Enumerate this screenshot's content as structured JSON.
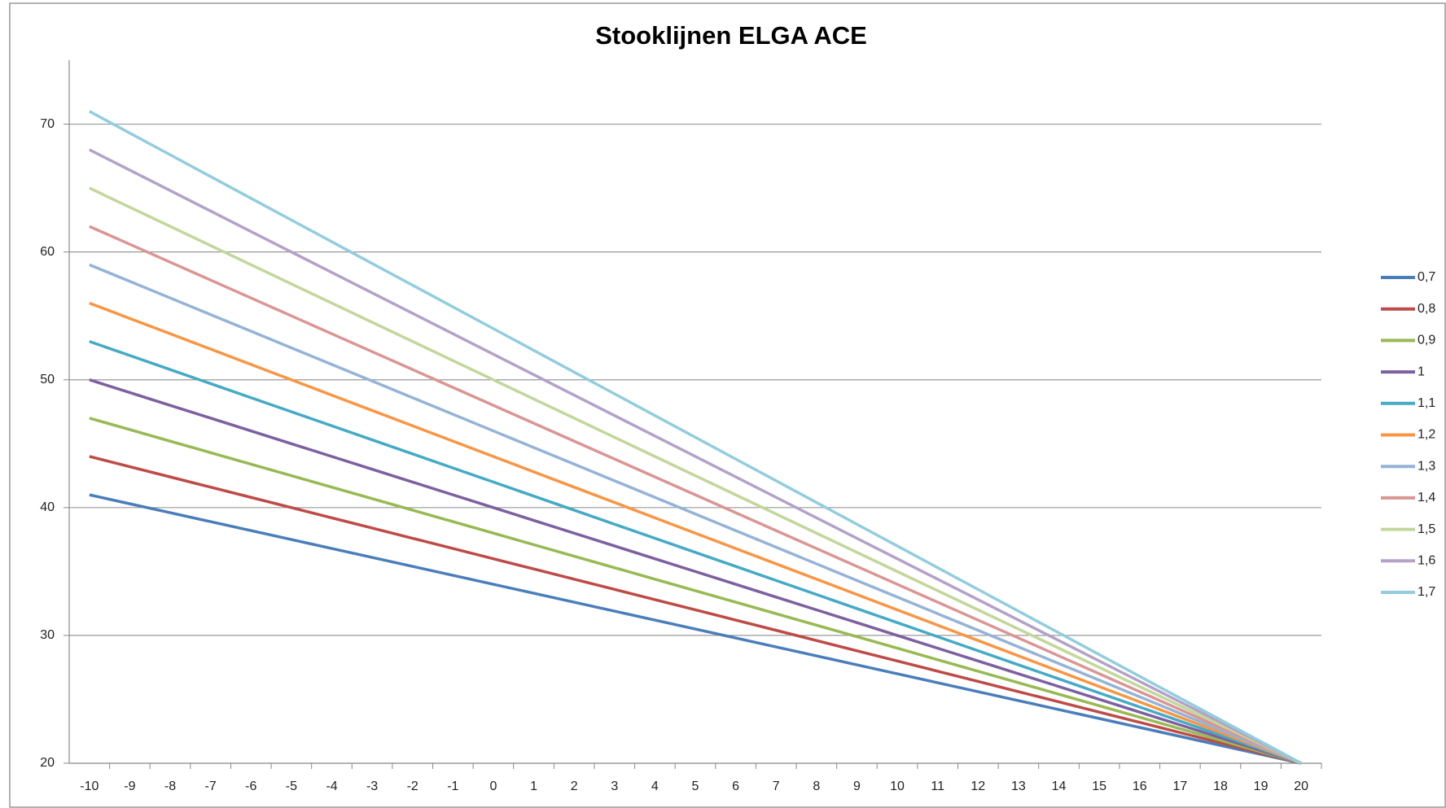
{
  "chart_data": {
    "type": "line",
    "title": "Stooklijnen ELGA ACE",
    "x": [
      -10,
      -9,
      -8,
      -7,
      -6,
      -5,
      -4,
      -3,
      -2,
      -1,
      0,
      1,
      2,
      3,
      4,
      5,
      6,
      7,
      8,
      9,
      10,
      11,
      12,
      13,
      14,
      15,
      16,
      17,
      18,
      19,
      20
    ],
    "xlim": [
      -10.5,
      20.5
    ],
    "xticks": [
      -10,
      -9,
      -8,
      -7,
      -6,
      -5,
      -4,
      -3,
      -2,
      -1,
      0,
      1,
      2,
      3,
      4,
      5,
      6,
      7,
      8,
      9,
      10,
      11,
      12,
      13,
      14,
      15,
      16,
      17,
      18,
      19,
      20
    ],
    "ylim": [
      20,
      75
    ],
    "yticks": [
      20,
      30,
      40,
      50,
      60,
      70
    ],
    "grid": true,
    "legend": "right",
    "series": [
      {
        "name": "0,7",
        "color": "#4a7ebb",
        "values": [
          41,
          40.3,
          39.6,
          38.9,
          38.2,
          37.5,
          36.8,
          36.1,
          35.4,
          34.7,
          34,
          33.3,
          32.6,
          31.9,
          31.2,
          30.5,
          29.8,
          29.1,
          28.4,
          27.7,
          27,
          26.3,
          25.6,
          24.9,
          24.2,
          23.5,
          22.8,
          22.1,
          21.4,
          20.7,
          20
        ]
      },
      {
        "name": "0,8",
        "color": "#be4b48",
        "values": [
          44,
          43.2,
          42.4,
          41.6,
          40.8,
          40,
          39.2,
          38.4,
          37.6,
          36.8,
          36,
          35.2,
          34.4,
          33.6,
          32.8,
          32,
          31.2,
          30.4,
          29.6,
          28.8,
          28,
          27.2,
          26.4,
          25.6,
          24.8,
          24,
          23.2,
          22.4,
          21.6,
          20.8,
          20
        ]
      },
      {
        "name": "0,9",
        "color": "#98b954",
        "values": [
          47,
          46.1,
          45.2,
          44.3,
          43.4,
          42.5,
          41.6,
          40.7,
          39.8,
          38.9,
          38,
          37.1,
          36.2,
          35.3,
          34.4,
          33.5,
          32.6,
          31.7,
          30.8,
          29.9,
          29,
          28.1,
          27.2,
          26.3,
          25.4,
          24.5,
          23.6,
          22.7,
          21.8,
          20.9,
          20
        ]
      },
      {
        "name": "1",
        "color": "#7d60a0",
        "values": [
          50,
          49,
          48,
          47,
          46,
          45,
          44,
          43,
          42,
          41,
          40,
          39,
          38,
          37,
          36,
          35,
          34,
          33,
          32,
          31,
          30,
          29,
          28,
          27,
          26,
          25,
          24,
          23,
          22,
          21,
          20
        ]
      },
      {
        "name": "1,1",
        "color": "#46aac5",
        "values": [
          53,
          51.9,
          50.8,
          49.7,
          48.6,
          47.5,
          46.4,
          45.3,
          44.2,
          43.1,
          42,
          40.9,
          39.8,
          38.7,
          37.6,
          36.5,
          35.4,
          34.3,
          33.2,
          32.1,
          31,
          29.9,
          28.8,
          27.7,
          26.6,
          25.5,
          24.4,
          23.3,
          22.2,
          21.1,
          20
        ]
      },
      {
        "name": "1,2",
        "color": "#f79646",
        "values": [
          56,
          54.8,
          53.6,
          52.4,
          51.2,
          50,
          48.8,
          47.6,
          46.4,
          45.2,
          44,
          42.8,
          41.6,
          40.4,
          39.2,
          38,
          36.8,
          35.6,
          34.4,
          33.2,
          32,
          30.8,
          29.6,
          28.4,
          27.2,
          26,
          24.8,
          23.6,
          22.4,
          21.2,
          20
        ]
      },
      {
        "name": "1,3",
        "color": "#95b3d7",
        "values": [
          59,
          57.7,
          56.4,
          55.1,
          53.8,
          52.5,
          51.2,
          49.9,
          48.6,
          47.3,
          46,
          44.7,
          43.4,
          42.1,
          40.8,
          39.5,
          38.2,
          36.9,
          35.6,
          34.3,
          33,
          31.7,
          30.4,
          29.1,
          27.8,
          26.5,
          25.2,
          23.9,
          22.6,
          21.3,
          20
        ]
      },
      {
        "name": "1,4",
        "color": "#d99694",
        "values": [
          62,
          60.6,
          59.2,
          57.8,
          56.4,
          55,
          53.6,
          52.2,
          50.8,
          49.4,
          48,
          46.6,
          45.2,
          43.8,
          42.4,
          41,
          39.6,
          38.2,
          36.8,
          35.4,
          34,
          32.6,
          31.2,
          29.8,
          28.4,
          27,
          25.6,
          24.2,
          22.8,
          21.4,
          20
        ]
      },
      {
        "name": "1,5",
        "color": "#c3d69b",
        "values": [
          65,
          63.5,
          62,
          60.5,
          59,
          57.5,
          56,
          54.5,
          53,
          51.5,
          50,
          48.5,
          47,
          45.5,
          44,
          42.5,
          41,
          39.5,
          38,
          36.5,
          35,
          33.5,
          32,
          30.5,
          29,
          27.5,
          26,
          24.5,
          23,
          21.5,
          20
        ]
      },
      {
        "name": "1,6",
        "color": "#b3a2c7",
        "values": [
          68,
          66.4,
          64.8,
          63.2,
          61.6,
          60,
          58.4,
          56.8,
          55.2,
          53.6,
          52,
          50.4,
          48.8,
          47.2,
          45.6,
          44,
          42.4,
          40.8,
          39.2,
          37.6,
          36,
          34.4,
          32.8,
          31.2,
          29.6,
          28,
          26.4,
          24.8,
          23.2,
          21.6,
          20
        ]
      },
      {
        "name": "1,7",
        "color": "#93cddd",
        "values": [
          71,
          69.3,
          67.6,
          65.9,
          64.2,
          62.5,
          60.8,
          59.1,
          57.4,
          55.7,
          54,
          52.3,
          50.6,
          48.9,
          47.2,
          45.5,
          43.8,
          42.1,
          40.4,
          38.7,
          37,
          35.3,
          33.6,
          31.9,
          30.2,
          28.5,
          26.8,
          25.1,
          23.4,
          21.7,
          20
        ]
      }
    ]
  }
}
